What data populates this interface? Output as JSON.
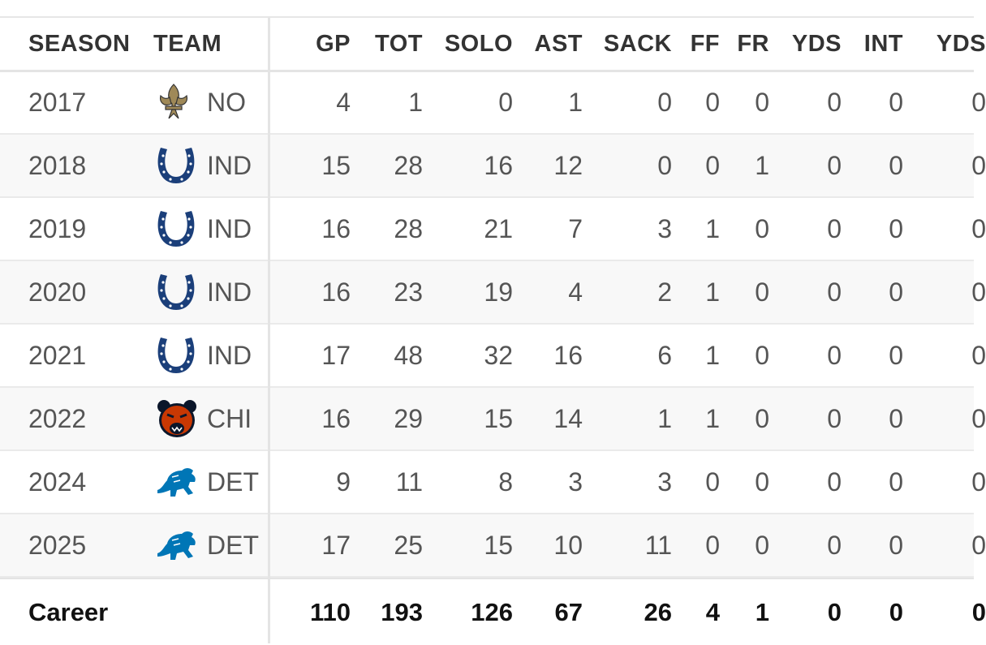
{
  "headers": [
    "SEASON",
    "TEAM",
    "GP",
    "TOT",
    "SOLO",
    "AST",
    "SACK",
    "FF",
    "FR",
    "YDS",
    "INT",
    "YDS"
  ],
  "rows": [
    {
      "season": "2017",
      "team": "NO",
      "logo": "saints-fleur-de-lis-icon",
      "stats": [
        "4",
        "1",
        "0",
        "1",
        "0",
        "0",
        "0",
        "0",
        "0",
        "0"
      ]
    },
    {
      "season": "2018",
      "team": "IND",
      "logo": "colts-horseshoe-icon",
      "stats": [
        "15",
        "28",
        "16",
        "12",
        "0",
        "0",
        "1",
        "0",
        "0",
        "0"
      ]
    },
    {
      "season": "2019",
      "team": "IND",
      "logo": "colts-horseshoe-icon",
      "stats": [
        "16",
        "28",
        "21",
        "7",
        "3",
        "1",
        "0",
        "0",
        "0",
        "0"
      ]
    },
    {
      "season": "2020",
      "team": "IND",
      "logo": "colts-horseshoe-icon",
      "stats": [
        "16",
        "23",
        "19",
        "4",
        "2",
        "1",
        "0",
        "0",
        "0",
        "0"
      ]
    },
    {
      "season": "2021",
      "team": "IND",
      "logo": "colts-horseshoe-icon",
      "stats": [
        "17",
        "48",
        "32",
        "16",
        "6",
        "1",
        "0",
        "0",
        "0",
        "0"
      ]
    },
    {
      "season": "2022",
      "team": "CHI",
      "logo": "bears-head-icon",
      "stats": [
        "16",
        "29",
        "15",
        "14",
        "1",
        "1",
        "0",
        "0",
        "0",
        "0"
      ]
    },
    {
      "season": "2024",
      "team": "DET",
      "logo": "lions-icon",
      "stats": [
        "9",
        "11",
        "8",
        "3",
        "3",
        "0",
        "0",
        "0",
        "0",
        "0"
      ]
    },
    {
      "season": "2025",
      "team": "DET",
      "logo": "lions-icon",
      "stats": [
        "17",
        "25",
        "15",
        "10",
        "11",
        "0",
        "0",
        "0",
        "0",
        "0"
      ]
    }
  ],
  "career": {
    "label": "Career",
    "stats": [
      "110",
      "193",
      "126",
      "67",
      "26",
      "4",
      "1",
      "0",
      "0",
      "0"
    ]
  },
  "colors": {
    "team_link": "#2f6db5",
    "colts_blue": "#1b3f7a",
    "saints_gold": "#9f8958",
    "bears_orange": "#c83803",
    "bears_navy": "#0b162a",
    "lions_blue": "#0076b6"
  }
}
